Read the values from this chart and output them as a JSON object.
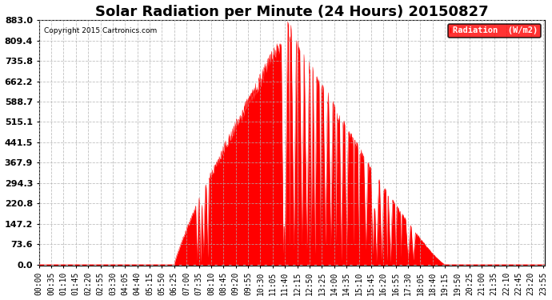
{
  "title": "Solar Radiation per Minute (24 Hours) 20150827",
  "copyright_text": "Copyright 2015 Cartronics.com",
  "legend_text": "Radiation  (W/m2)",
  "yticks": [
    0.0,
    73.6,
    147.2,
    220.8,
    294.3,
    367.9,
    441.5,
    515.1,
    588.7,
    662.2,
    735.8,
    809.4,
    883.0
  ],
  "ymax": 883.0,
  "bg_color": "#ffffff",
  "fill_color": "#ff0000",
  "line_color": "#ff0000",
  "grid_color": "#b0b0b0",
  "title_fontsize": 13,
  "tick_fontsize": 7,
  "ytick_fontsize": 8,
  "sunrise_min": 385,
  "sunset_min": 1155,
  "peak_min": 710,
  "tick_interval": 35
}
